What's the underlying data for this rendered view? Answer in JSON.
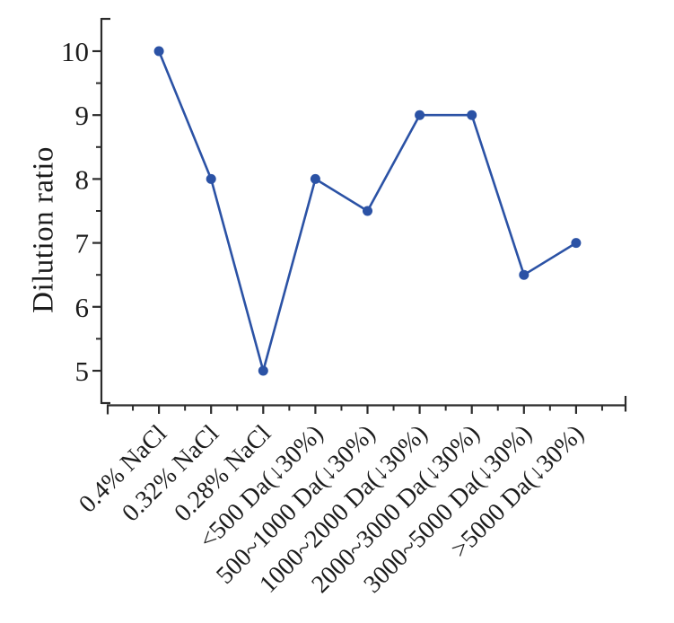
{
  "chart_data": {
    "type": "line",
    "title": "",
    "xlabel": "",
    "ylabel": "Dilution ratio",
    "categories": [
      "0.4% NaCl",
      "0.32% NaCl",
      "0.28% NaCl",
      "<500 Da(↓30%)",
      "500~1000 Da(↓30%)",
      "1000~2000 Da(↓30%)",
      "2000~3000 Da(↓30%)",
      "3000~5000 Da(↓30%)",
      ">5000 Da(↓30%)"
    ],
    "series": [
      {
        "name": "Dilution ratio",
        "values": [
          10,
          8,
          5,
          8,
          7.5,
          9,
          9,
          6.5,
          7
        ]
      }
    ],
    "yticks": [
      5,
      6,
      7,
      8,
      9,
      10
    ],
    "y_minor_step": 0.5,
    "ylim": [
      4.5,
      10.5
    ],
    "grid": false,
    "legend": "none",
    "marker": "circle",
    "x_label_rotation_deg": -45,
    "line_color": "#2b52a5",
    "axis_color": "#2b2b2b",
    "text_color": "#1c1c1c",
    "background_color": "#ffffff"
  }
}
